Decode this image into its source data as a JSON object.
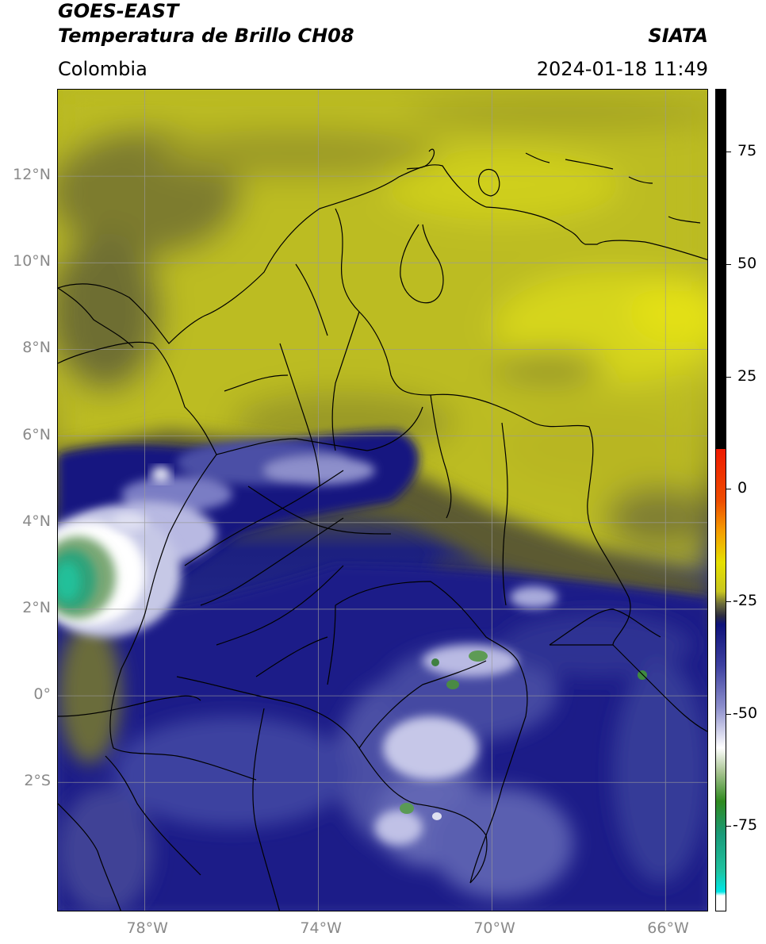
{
  "header": {
    "satellite": "GOES-EAST",
    "product": "Temperatura de Brillo CH08",
    "region": "Colombia",
    "org": "SIATA",
    "datetime": "2024-01-18 11:49"
  },
  "map": {
    "lat_labels": [
      "12°N",
      "10°N",
      "8°N",
      "6°N",
      "4°N",
      "2°N",
      "0°",
      "2°S"
    ],
    "lon_labels": [
      "78°W",
      "74°W",
      "70°W",
      "66°W"
    ],
    "lon_range": [
      -80,
      -65
    ],
    "lat_range": [
      -5,
      14
    ]
  },
  "colorbar": {
    "ticks": [
      "75",
      "50",
      "25",
      "0",
      "-25",
      "-50",
      "-75"
    ],
    "range": [
      -94,
      89
    ],
    "colors": {
      "black": "#000000",
      "red": "#ee1a00",
      "orange": "#f59a00",
      "yellow": "#e6e000",
      "olive": "#8a8a20",
      "navy": "#0e127a",
      "lavender": "#b8b8e0",
      "white": "#ffffff",
      "green": "#2f8a1f",
      "teal": "#1fc2a0",
      "cyan": "#00e6e6"
    }
  }
}
